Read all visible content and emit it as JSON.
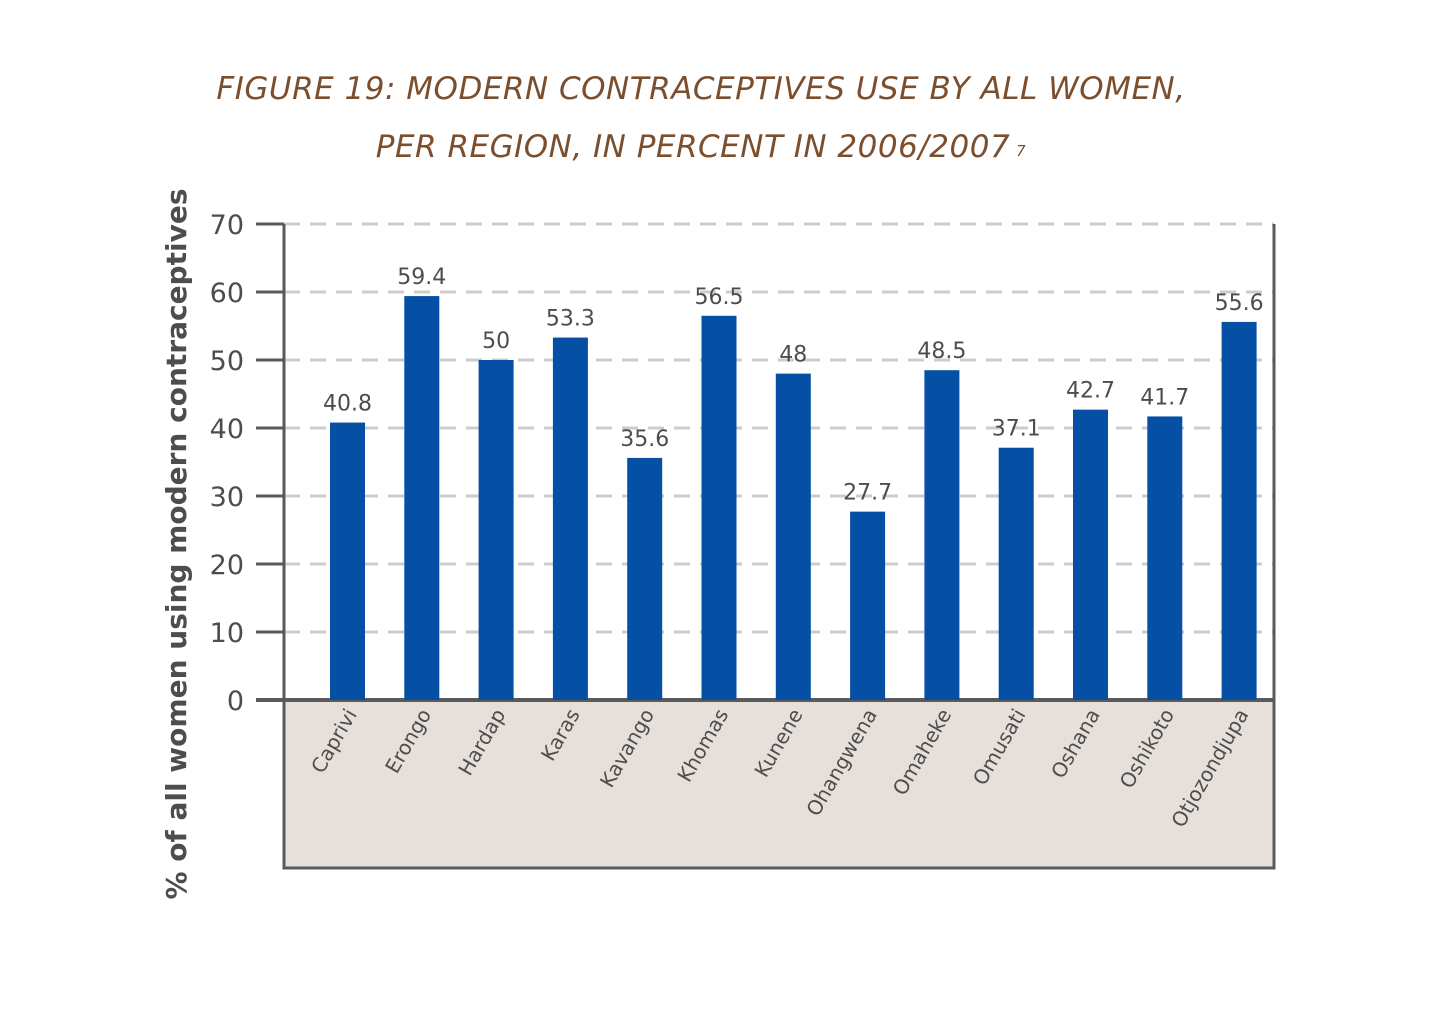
{
  "title": {
    "line1": "FIGURE 19: MODERN CONTRACEPTIVES USE BY ALL WOMEN,",
    "line2": "PER REGION, IN PERCENT IN 2006/2007",
    "footnote": "7"
  },
  "chart_data": {
    "type": "bar",
    "categories": [
      "Caprivi",
      "Erongo",
      "Hardap",
      "Karas",
      "Kavango",
      "Khomas",
      "Kunene",
      "Ohangwena",
      "Omaheke",
      "Omusati",
      "Oshana",
      "Oshikoto",
      "Otjozondjupa"
    ],
    "values": [
      40.8,
      59.4,
      50,
      53.3,
      35.6,
      56.5,
      48,
      27.7,
      48.5,
      37.1,
      42.7,
      41.7,
      55.6
    ],
    "value_labels": [
      "40.8",
      "59.4",
      "50",
      "53.3",
      "35.6",
      "56.5",
      "48",
      "27.7",
      "48.5",
      "37.1",
      "42.7",
      "41.7",
      "55.6"
    ],
    "title": "FIGURE 19: MODERN CONTRACEPTIVES USE BY ALL WOMEN, PER REGION, IN PERCENT IN 2006/2007",
    "xlabel": "",
    "ylabel": "% of all women using modern contraceptives",
    "ylim": [
      0,
      70
    ],
    "yticks": [
      0,
      10,
      20,
      30,
      40,
      50,
      60,
      70
    ],
    "grid": true,
    "legend": "none",
    "colors": {
      "bar": "#0550a4",
      "grid": "#cccccc",
      "axis": "#5a5a5a",
      "category_band": "#e6dfda",
      "title": "#7b4f2e",
      "text": "#4d4d4d"
    }
  }
}
